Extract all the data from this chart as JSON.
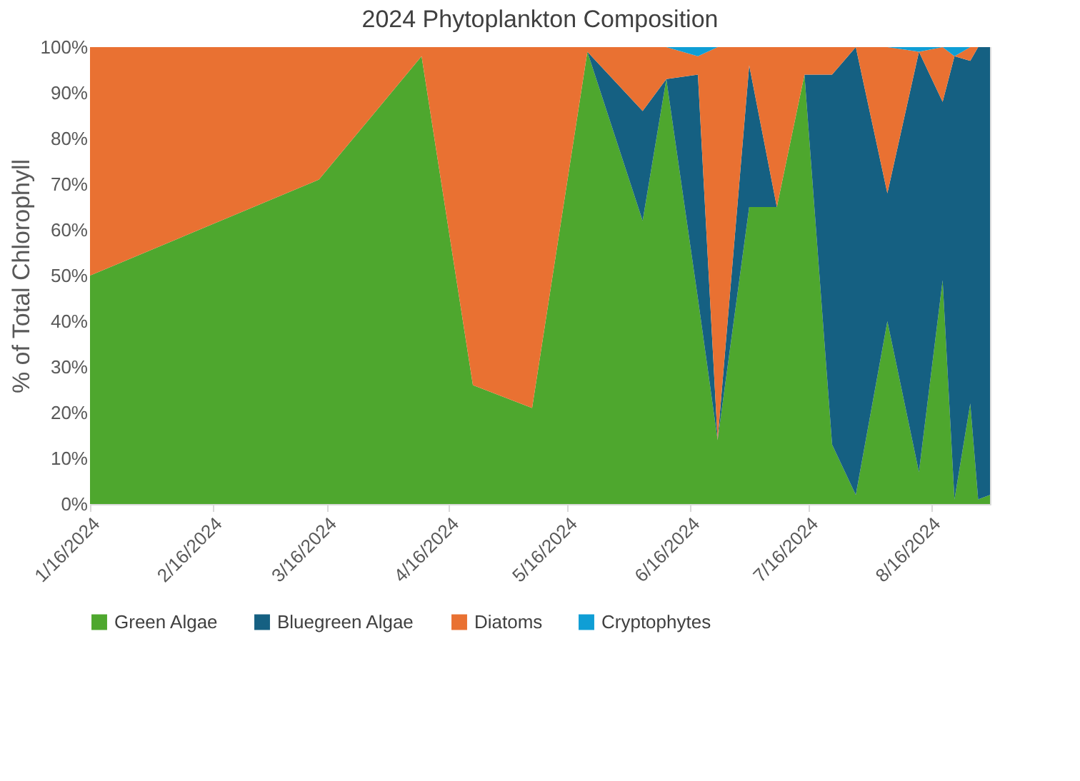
{
  "chart_data": {
    "type": "area",
    "title": "2024 Phytoplankton Composition",
    "ylabel": "% of Total Chlorophyll",
    "stacked": true,
    "x": [
      "2024-01-16",
      "2024-03-14",
      "2024-04-09",
      "2024-04-22",
      "2024-05-07",
      "2024-05-21",
      "2024-06-04",
      "2024-06-10",
      "2024-06-18",
      "2024-06-23",
      "2024-07-01",
      "2024-07-08",
      "2024-07-15",
      "2024-07-22",
      "2024-07-28",
      "2024-08-05",
      "2024-08-13",
      "2024-08-19",
      "2024-08-22",
      "2024-08-26",
      "2024-08-28",
      "2024-08-31"
    ],
    "series": [
      {
        "name": "Green Algae",
        "color": "#4ea72e",
        "values": [
          50,
          71,
          98,
          26,
          21,
          99,
          62,
          93,
          45,
          14,
          65,
          65,
          94,
          13,
          2,
          40,
          7,
          49,
          1,
          22,
          1,
          2
        ]
      },
      {
        "name": "Bluegreen Algae",
        "color": "#156082",
        "values": [
          0,
          0,
          0,
          0,
          0,
          0,
          24,
          0,
          49,
          0,
          31,
          0,
          0,
          81,
          98,
          28,
          92,
          39,
          97,
          75,
          99,
          98
        ]
      },
      {
        "name": "Diatoms",
        "color": "#e97132",
        "values": [
          50,
          29,
          2,
          74,
          79,
          1,
          14,
          7,
          4,
          86,
          4,
          35,
          6,
          6,
          0,
          32,
          0,
          12,
          0,
          3,
          0,
          0
        ]
      },
      {
        "name": "Cryptophytes",
        "color": "#0f9ed5",
        "values": [
          0,
          0,
          0,
          0,
          0,
          0,
          0,
          0,
          2,
          0,
          0,
          0,
          0,
          0,
          0,
          0,
          1,
          0,
          2,
          0,
          0,
          0
        ]
      }
    ],
    "xlim": [
      "2024-01-16",
      "2024-08-31"
    ],
    "xticks": [
      {
        "value": "2024-01-16",
        "label": "1/16/2024"
      },
      {
        "value": "2024-02-16",
        "label": "2/16/2024"
      },
      {
        "value": "2024-03-16",
        "label": "3/16/2024"
      },
      {
        "value": "2024-04-16",
        "label": "4/16/2024"
      },
      {
        "value": "2024-05-16",
        "label": "5/16/2024"
      },
      {
        "value": "2024-06-16",
        "label": "6/16/2024"
      },
      {
        "value": "2024-07-16",
        "label": "7/16/2024"
      },
      {
        "value": "2024-08-16",
        "label": "8/16/2024"
      }
    ],
    "ylim": [
      0,
      100
    ],
    "yticks": [
      {
        "value": 0,
        "label": "0%"
      },
      {
        "value": 10,
        "label": "10%"
      },
      {
        "value": 20,
        "label": "20%"
      },
      {
        "value": 30,
        "label": "30%"
      },
      {
        "value": 40,
        "label": "40%"
      },
      {
        "value": 50,
        "label": "50%"
      },
      {
        "value": 60,
        "label": "60%"
      },
      {
        "value": 70,
        "label": "70%"
      },
      {
        "value": 80,
        "label": "80%"
      },
      {
        "value": 90,
        "label": "90%"
      },
      {
        "value": 100,
        "label": "100%"
      }
    ],
    "grid": false,
    "legend": "bottom"
  }
}
